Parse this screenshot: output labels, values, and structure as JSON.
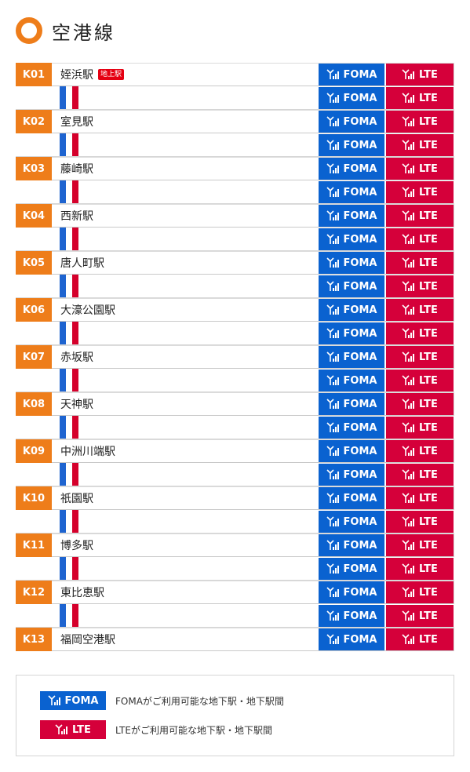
{
  "header": {
    "title": "空港線"
  },
  "signal": {
    "foma": "FOMA",
    "lte": "LTE"
  },
  "stations": [
    {
      "code": "K01",
      "name": "姪浜駅",
      "badge": "地上駅"
    },
    {
      "code": "K02",
      "name": "室見駅"
    },
    {
      "code": "K03",
      "name": "藤崎駅"
    },
    {
      "code": "K04",
      "name": "西新駅"
    },
    {
      "code": "K05",
      "name": "唐人町駅"
    },
    {
      "code": "K06",
      "name": "大濠公園駅"
    },
    {
      "code": "K07",
      "name": "赤坂駅"
    },
    {
      "code": "K08",
      "name": "天神駅"
    },
    {
      "code": "K09",
      "name": "中洲川端駅"
    },
    {
      "code": "K10",
      "name": "祇園駅"
    },
    {
      "code": "K11",
      "name": "博多駅"
    },
    {
      "code": "K12",
      "name": "東比恵駅"
    },
    {
      "code": "K13",
      "name": "福岡空港駅"
    }
  ],
  "legend": {
    "foma_label": "FOMA",
    "foma_text": "FOMAがご利用可能な地下駅・地下駅間",
    "lte_label": "LTE",
    "lte_text": "LTEがご利用可能な地下駅・地下駅間"
  },
  "colors": {
    "line_orange": "#ee7d1a",
    "foma_blue": "#0a62d0",
    "lte_red": "#d5003a"
  }
}
